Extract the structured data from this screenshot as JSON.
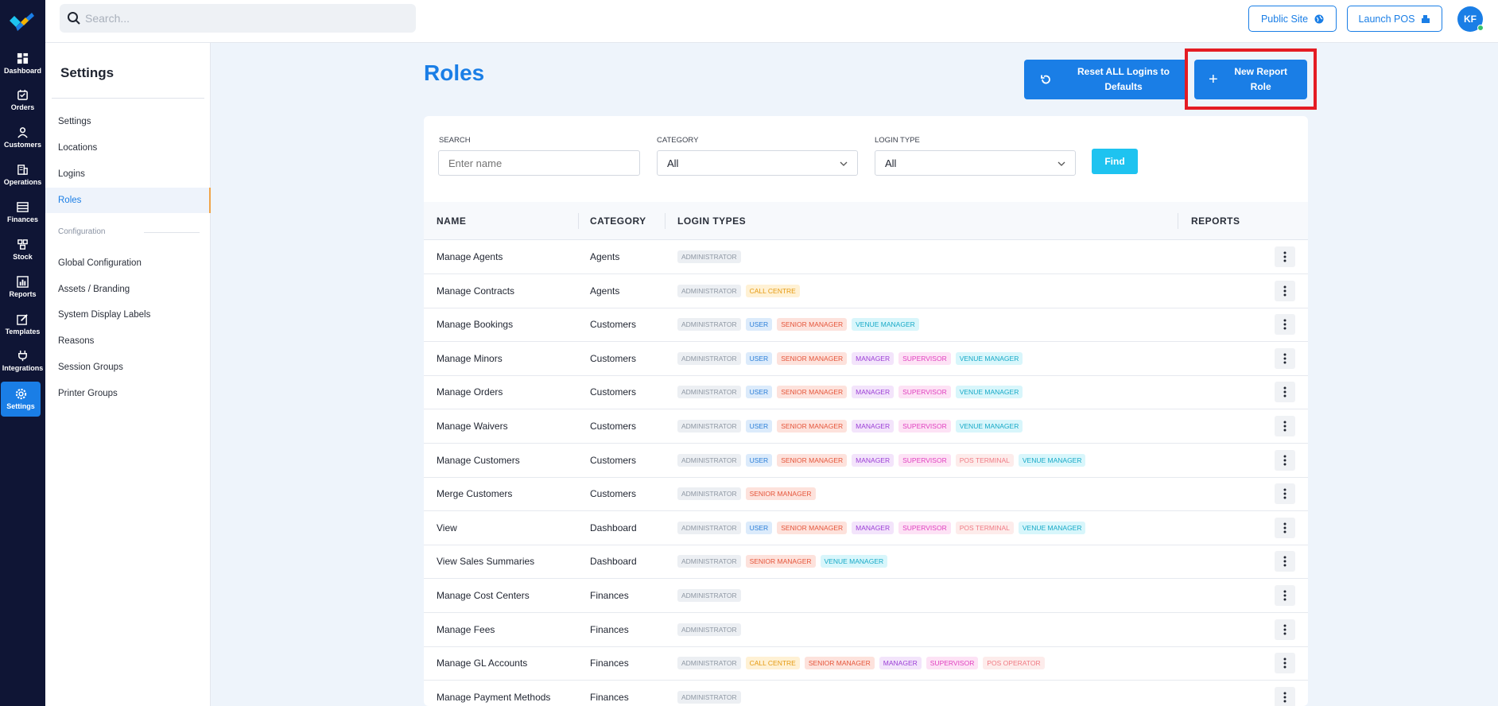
{
  "nav": {
    "items": [
      {
        "label": "Dashboard",
        "icon": "dashboard-icon"
      },
      {
        "label": "Orders",
        "icon": "orders-icon"
      },
      {
        "label": "Customers",
        "icon": "customers-icon"
      },
      {
        "label": "Operations",
        "icon": "operations-icon"
      },
      {
        "label": "Finances",
        "icon": "finances-icon"
      },
      {
        "label": "Stock",
        "icon": "stock-icon"
      },
      {
        "label": "Reports",
        "icon": "reports-icon"
      },
      {
        "label": "Templates",
        "icon": "templates-icon"
      },
      {
        "label": "Integrations",
        "icon": "integrations-icon"
      },
      {
        "label": "Settings",
        "icon": "gear-icon"
      }
    ],
    "active": "Settings"
  },
  "topbar": {
    "search_placeholder": "Search...",
    "public_site_label": "Public Site",
    "launch_pos_label": "Launch POS",
    "avatar_initials": "KF"
  },
  "sidebar": {
    "title": "Settings",
    "items": [
      {
        "label": "Settings"
      },
      {
        "label": "Locations"
      },
      {
        "label": "Logins"
      },
      {
        "label": "Roles"
      }
    ],
    "section_label": "Configuration",
    "config_items": [
      {
        "label": "Global Configuration"
      },
      {
        "label": "Assets / Branding"
      },
      {
        "label": "System Display Labels"
      },
      {
        "label": "Reasons"
      },
      {
        "label": "Session Groups"
      },
      {
        "label": "Printer Groups"
      }
    ]
  },
  "main": {
    "title": "Roles",
    "reset_button": "Reset ALL Logins to Defaults",
    "new_button": "New Report Role",
    "filters": {
      "search_label": "SEARCH",
      "search_placeholder": "Enter name",
      "category_label": "CATEGORY",
      "category_value": "All",
      "login_type_label": "LOGIN TYPE",
      "login_type_value": "All",
      "find_label": "Find"
    },
    "table": {
      "headers": [
        "NAME",
        "CATEGORY",
        "LOGIN TYPES",
        "REPORTS"
      ],
      "rows": [
        {
          "name": "Manage Agents",
          "category": "Agents",
          "badges": [
            "ADMINISTRATOR"
          ]
        },
        {
          "name": "Manage Contracts",
          "category": "Agents",
          "badges": [
            "ADMINISTRATOR",
            "CALL CENTRE"
          ]
        },
        {
          "name": "Manage Bookings",
          "category": "Customers",
          "badges": [
            "ADMINISTRATOR",
            "USER",
            "SENIOR MANAGER",
            "VENUE MANAGER"
          ]
        },
        {
          "name": "Manage Minors",
          "category": "Customers",
          "badges": [
            "ADMINISTRATOR",
            "USER",
            "SENIOR MANAGER",
            "MANAGER",
            "SUPERVISOR",
            "VENUE MANAGER"
          ]
        },
        {
          "name": "Manage Orders",
          "category": "Customers",
          "badges": [
            "ADMINISTRATOR",
            "USER",
            "SENIOR MANAGER",
            "MANAGER",
            "SUPERVISOR",
            "VENUE MANAGER"
          ]
        },
        {
          "name": "Manage Waivers",
          "category": "Customers",
          "badges": [
            "ADMINISTRATOR",
            "USER",
            "SENIOR MANAGER",
            "MANAGER",
            "SUPERVISOR",
            "VENUE MANAGER"
          ]
        },
        {
          "name": "Manage Customers",
          "category": "Customers",
          "badges": [
            "ADMINISTRATOR",
            "USER",
            "SENIOR MANAGER",
            "MANAGER",
            "SUPERVISOR",
            "POS TERMINAL",
            "VENUE MANAGER"
          ]
        },
        {
          "name": "Merge Customers",
          "category": "Customers",
          "badges": [
            "ADMINISTRATOR",
            "SENIOR MANAGER"
          ]
        },
        {
          "name": "View",
          "category": "Dashboard",
          "badges": [
            "ADMINISTRATOR",
            "USER",
            "SENIOR MANAGER",
            "MANAGER",
            "SUPERVISOR",
            "POS TERMINAL",
            "VENUE MANAGER"
          ]
        },
        {
          "name": "View Sales Summaries",
          "category": "Dashboard",
          "badges": [
            "ADMINISTRATOR",
            "SENIOR MANAGER",
            "VENUE MANAGER"
          ]
        },
        {
          "name": "Manage Cost Centers",
          "category": "Finances",
          "badges": [
            "ADMINISTRATOR"
          ]
        },
        {
          "name": "Manage Fees",
          "category": "Finances",
          "badges": [
            "ADMINISTRATOR"
          ]
        },
        {
          "name": "Manage GL Accounts",
          "category": "Finances",
          "badges": [
            "ADMINISTRATOR",
            "CALL CENTRE",
            "SENIOR MANAGER",
            "MANAGER",
            "SUPERVISOR",
            "POS OPERATOR"
          ]
        },
        {
          "name": "Manage Payment Methods",
          "category": "Finances",
          "badges": [
            "ADMINISTRATOR"
          ]
        }
      ]
    }
  },
  "colors": {
    "accent": "#1a7ee6",
    "rail": "#0f1535",
    "find": "#1ec3f0",
    "highlight": "#e41c23"
  }
}
